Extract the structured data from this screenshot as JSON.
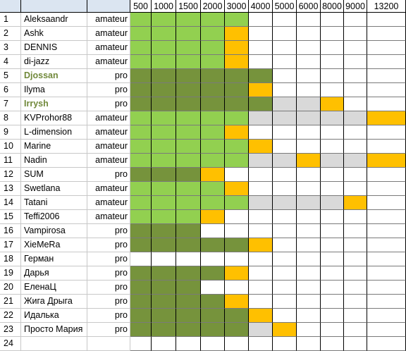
{
  "colors": {
    "header_bg": "#dbe5f1",
    "amateur_done": "#92d050",
    "pro_done": "#76933c",
    "current": "#ffc000",
    "skipped": "#d9d9d9",
    "pro_name": "#71893b"
  },
  "thresholds": [
    "500",
    "1000",
    "1500",
    "2000",
    "3000",
    "4000",
    "5000",
    "6000",
    "8000",
    "9000",
    "13200"
  ],
  "participants": [
    {
      "n": "1",
      "name": "Aleksaandr",
      "level": "amateur",
      "bold": false,
      "cells": [
        "A",
        "A",
        "A",
        "A",
        "A",
        "",
        "",
        "",
        "",
        "",
        ""
      ]
    },
    {
      "n": "2",
      "name": "Ashk",
      "level": "amateur",
      "bold": false,
      "cells": [
        "A",
        "A",
        "A",
        "A",
        "Y",
        "",
        "",
        "",
        "",
        "",
        ""
      ]
    },
    {
      "n": "3",
      "name": "DENNIS",
      "level": "amateur",
      "bold": false,
      "cells": [
        "A",
        "A",
        "A",
        "A",
        "Y",
        "",
        "",
        "",
        "",
        "",
        ""
      ]
    },
    {
      "n": "4",
      "name": "di-jazz",
      "level": "amateur",
      "bold": false,
      "cells": [
        "A",
        "A",
        "A",
        "A",
        "Y",
        "",
        "",
        "",
        "",
        "",
        ""
      ]
    },
    {
      "n": "5",
      "name": "Djossan",
      "level": "pro",
      "bold": true,
      "cells": [
        "P",
        "P",
        "P",
        "P",
        "P",
        "P",
        "",
        "",
        "",
        "",
        ""
      ]
    },
    {
      "n": "6",
      "name": "Ilyma",
      "level": "pro",
      "bold": false,
      "cells": [
        "P",
        "P",
        "P",
        "P",
        "P",
        "Y",
        "",
        "",
        "",
        "",
        ""
      ]
    },
    {
      "n": "7",
      "name": "Irrysh",
      "level": "pro",
      "bold": true,
      "cells": [
        "P",
        "P",
        "P",
        "P",
        "P",
        "P",
        "G",
        "G",
        "Y",
        "",
        ""
      ]
    },
    {
      "n": "8",
      "name": "KVProhor88",
      "level": "amateur",
      "bold": false,
      "cells": [
        "A",
        "A",
        "A",
        "A",
        "A",
        "G",
        "G",
        "G",
        "G",
        "G",
        "Y"
      ]
    },
    {
      "n": "9",
      "name": "L-dimension",
      "level": "amateur",
      "bold": false,
      "cells": [
        "A",
        "A",
        "A",
        "A",
        "Y",
        "",
        "",
        "",
        "",
        "",
        ""
      ]
    },
    {
      "n": "10",
      "name": "Marine",
      "level": "amateur",
      "bold": false,
      "cells": [
        "A",
        "A",
        "A",
        "A",
        "A",
        "Y",
        "",
        "",
        "",
        "",
        ""
      ]
    },
    {
      "n": "11",
      "name": "Nadin",
      "level": "amateur",
      "bold": false,
      "cells": [
        "A",
        "A",
        "A",
        "A",
        "A",
        "G",
        "G",
        "Y",
        "G",
        "G",
        "Y"
      ]
    },
    {
      "n": "12",
      "name": "SUM",
      "level": "pro",
      "bold": false,
      "cells": [
        "P",
        "P",
        "P",
        "Y",
        "",
        "",
        "",
        "",
        "",
        "",
        ""
      ]
    },
    {
      "n": "13",
      "name": "Swetlana",
      "level": "amateur",
      "bold": false,
      "cells": [
        "A",
        "A",
        "A",
        "A",
        "Y",
        "",
        "",
        "",
        "",
        "",
        ""
      ]
    },
    {
      "n": "14",
      "name": "Tatani",
      "level": "amateur",
      "bold": false,
      "cells": [
        "A",
        "A",
        "A",
        "A",
        "A",
        "G",
        "G",
        "G",
        "G",
        "Y",
        ""
      ]
    },
    {
      "n": "15",
      "name": "Teffi2006",
      "level": "amateur",
      "bold": false,
      "cells": [
        "A",
        "A",
        "A",
        "Y",
        "",
        "",
        "",
        "",
        "",
        "",
        ""
      ]
    },
    {
      "n": "16",
      "name": "Vampirosa",
      "level": "pro",
      "bold": false,
      "cells": [
        "P",
        "P",
        "P",
        "",
        "",
        "",
        "",
        "",
        "",
        "",
        ""
      ]
    },
    {
      "n": "17",
      "name": "XieMeRa",
      "level": "pro",
      "bold": false,
      "cells": [
        "P",
        "P",
        "P",
        "P",
        "P",
        "Y",
        "",
        "",
        "",
        "",
        ""
      ]
    },
    {
      "n": "18",
      "name": "Герман",
      "level": "pro",
      "bold": false,
      "cells": [
        "",
        "",
        "",
        "",
        "",
        "",
        "",
        "",
        "",
        "",
        ""
      ]
    },
    {
      "n": "19",
      "name": "Дарья",
      "level": "pro",
      "bold": false,
      "cells": [
        "P",
        "P",
        "P",
        "P",
        "Y",
        "",
        "",
        "",
        "",
        "",
        ""
      ]
    },
    {
      "n": "20",
      "name": "ЕленаЦ",
      "level": "pro",
      "bold": false,
      "cells": [
        "P",
        "P",
        "P",
        "",
        "",
        "",
        "",
        "",
        "",
        "",
        ""
      ]
    },
    {
      "n": "21",
      "name": "Жига Дрыга",
      "level": "pro",
      "bold": false,
      "cells": [
        "P",
        "P",
        "P",
        "P",
        "Y",
        "",
        "",
        "",
        "",
        "",
        ""
      ]
    },
    {
      "n": "22",
      "name": "Идалька",
      "level": "pro",
      "bold": false,
      "cells": [
        "P",
        "P",
        "P",
        "P",
        "P",
        "Y",
        "",
        "",
        "",
        "",
        ""
      ]
    },
    {
      "n": "23",
      "name": "Просто Мария",
      "level": "pro",
      "bold": false,
      "cells": [
        "P",
        "P",
        "P",
        "P",
        "P",
        "G",
        "Y",
        "",
        "",
        "",
        ""
      ]
    },
    {
      "n": "24",
      "name": "",
      "level": "",
      "bold": false,
      "cells": [
        "",
        "",
        "",
        "",
        "",
        "",
        "",
        "",
        "",
        "",
        ""
      ]
    }
  ]
}
